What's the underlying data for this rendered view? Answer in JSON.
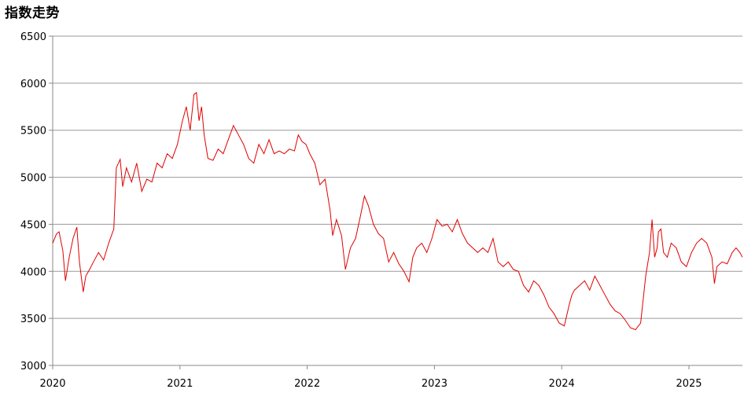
{
  "chart_data": {
    "type": "line",
    "title": "指数走势",
    "xlabel": "",
    "ylabel": "",
    "ylim": [
      3000,
      6500
    ],
    "yticks": [
      3000,
      3500,
      4000,
      4500,
      5000,
      5500,
      6000,
      6500
    ],
    "xlim": [
      2020.0,
      2025.42
    ],
    "xticks": [
      "2020",
      "2021",
      "2022",
      "2023",
      "2024",
      "2025"
    ],
    "grid": "horizontal",
    "legend": "none",
    "line_color": "#e00000",
    "series": [
      {
        "x": [
          2020.0,
          2020.03,
          2020.05,
          2020.08,
          2020.1,
          2020.13,
          2020.16,
          2020.19,
          2020.21,
          2020.24,
          2020.26,
          2020.29,
          2020.32,
          2020.36,
          2020.4,
          2020.44,
          2020.48,
          2020.5,
          2020.53,
          2020.55,
          2020.58,
          2020.62,
          2020.66,
          2020.7,
          2020.74,
          2020.78,
          2020.82,
          2020.86,
          2020.9,
          2020.94,
          2020.98,
          2021.02,
          2021.05,
          2021.08,
          2021.11,
          2021.13,
          2021.15,
          2021.17,
          2021.19,
          2021.22,
          2021.26,
          2021.3,
          2021.34,
          2021.38,
          2021.42,
          2021.46,
          2021.5,
          2021.54,
          2021.58,
          2021.62,
          2021.66,
          2021.7,
          2021.74,
          2021.78,
          2021.82,
          2021.86,
          2021.9,
          2021.93,
          2021.96,
          2021.99,
          2022.02,
          2022.06,
          2022.1,
          2022.14,
          2022.18,
          2022.2,
          2022.23,
          2022.27,
          2022.3,
          2022.34,
          2022.38,
          2022.42,
          2022.45,
          2022.48,
          2022.52,
          2022.56,
          2022.6,
          2022.64,
          2022.68,
          2022.72,
          2022.76,
          2022.8,
          2022.83,
          2022.86,
          2022.9,
          2022.94,
          2022.98,
          2023.02,
          2023.06,
          2023.1,
          2023.14,
          2023.18,
          2023.22,
          2023.26,
          2023.3,
          2023.34,
          2023.38,
          2023.42,
          2023.46,
          2023.5,
          2023.54,
          2023.58,
          2023.62,
          2023.66,
          2023.7,
          2023.74,
          2023.78,
          2023.82,
          2023.86,
          2023.9,
          2023.94,
          2023.98,
          2024.02,
          2024.06,
          2024.08,
          2024.1,
          2024.14,
          2024.18,
          2024.22,
          2024.26,
          2024.3,
          2024.34,
          2024.38,
          2024.42,
          2024.46,
          2024.5,
          2024.54,
          2024.58,
          2024.62,
          2024.66,
          2024.69,
          2024.71,
          2024.73,
          2024.75,
          2024.76,
          2024.78,
          2024.8,
          2024.83,
          2024.86,
          2024.9,
          2024.94,
          2024.98,
          2025.02,
          2025.06,
          2025.1,
          2025.14,
          2025.18,
          2025.2,
          2025.22,
          2025.26,
          2025.3,
          2025.34,
          2025.37,
          2025.4,
          2025.42
        ],
        "values": [
          4300,
          4400,
          4420,
          4220,
          3900,
          4150,
          4350,
          4470,
          4100,
          3780,
          3950,
          4020,
          4100,
          4200,
          4120,
          4300,
          4450,
          5100,
          5190,
          4900,
          5100,
          4950,
          5150,
          4850,
          4980,
          4950,
          5150,
          5100,
          5250,
          5200,
          5350,
          5600,
          5750,
          5500,
          5880,
          5900,
          5600,
          5750,
          5450,
          5200,
          5180,
          5300,
          5250,
          5400,
          5550,
          5450,
          5350,
          5200,
          5150,
          5350,
          5250,
          5400,
          5250,
          5280,
          5250,
          5300,
          5280,
          5450,
          5380,
          5350,
          5250,
          5150,
          4920,
          4980,
          4650,
          4380,
          4550,
          4380,
          4020,
          4250,
          4350,
          4600,
          4800,
          4700,
          4500,
          4400,
          4350,
          4100,
          4200,
          4080,
          4000,
          3890,
          4150,
          4250,
          4300,
          4200,
          4350,
          4550,
          4480,
          4500,
          4420,
          4550,
          4400,
          4300,
          4250,
          4200,
          4250,
          4200,
          4350,
          4100,
          4050,
          4100,
          4020,
          4000,
          3850,
          3780,
          3900,
          3850,
          3750,
          3620,
          3550,
          3450,
          3420,
          3650,
          3750,
          3800,
          3850,
          3900,
          3800,
          3950,
          3850,
          3750,
          3650,
          3580,
          3550,
          3480,
          3400,
          3380,
          3450,
          3950,
          4200,
          4550,
          4150,
          4250,
          4420,
          4450,
          4200,
          4150,
          4300,
          4250,
          4100,
          4050,
          4200,
          4300,
          4350,
          4300,
          4150,
          3870,
          4050,
          4100,
          4080,
          4200,
          4250,
          4200,
          4150
        ]
      }
    ]
  }
}
